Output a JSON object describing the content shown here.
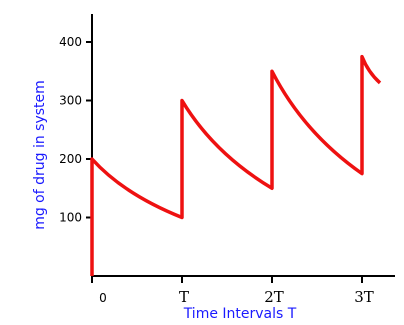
{
  "chart_data": {
    "type": "line",
    "title": "",
    "xlabel": "Time Intervals T",
    "ylabel": "mg of drug in system",
    "xlim": [
      0,
      3.3
    ],
    "ylim": [
      0,
      440
    ],
    "x_ticks": [
      {
        "value": 0,
        "label": "0"
      },
      {
        "value": 1,
        "label": "T"
      },
      {
        "value": 2,
        "label": "2T"
      },
      {
        "value": 3,
        "label": "3T"
      }
    ],
    "y_ticks": [
      {
        "value": 100,
        "label": "100"
      },
      {
        "value": 200,
        "label": "200"
      },
      {
        "value": 300,
        "label": "300"
      },
      {
        "value": 400,
        "label": "400"
      }
    ],
    "grid": false,
    "series": [
      {
        "points": [
          [
            0,
            0
          ],
          [
            0,
            200
          ],
          [
            1,
            100
          ],
          [
            1,
            300
          ],
          [
            2,
            150
          ],
          [
            2,
            350
          ],
          [
            3,
            175
          ],
          [
            3,
            375
          ],
          [
            3.2,
            330
          ]
        ]
      }
    ],
    "colors": {
      "line": "#ee1111",
      "axis": "#000000",
      "label": "#1a1aff"
    }
  }
}
